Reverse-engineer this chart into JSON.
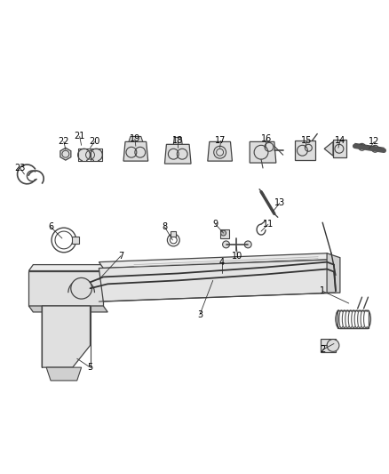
{
  "bg_color": "#ffffff",
  "line_color": "#444444",
  "label_color": "#000000",
  "figsize": [
    4.38,
    5.33
  ],
  "dpi": 100,
  "label_fs": 7.0
}
